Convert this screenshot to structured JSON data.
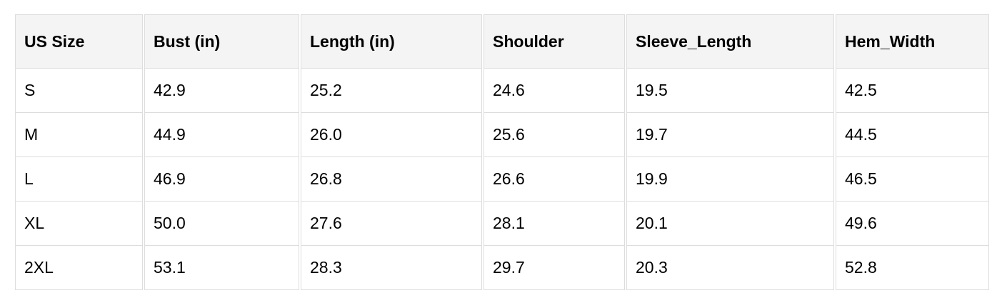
{
  "table": {
    "headers": [
      "US Size",
      "Bust (in)",
      "Length (in)",
      "Shoulder",
      "Sleeve_Length",
      "Hem_Width"
    ],
    "rows": [
      [
        "S",
        "42.9",
        "25.2",
        "24.6",
        "19.5",
        "42.5"
      ],
      [
        "M",
        "44.9",
        "26.0",
        "25.6",
        "19.7",
        "44.5"
      ],
      [
        "L",
        "46.9",
        "26.8",
        "26.6",
        "19.9",
        "46.5"
      ],
      [
        "XL",
        "50.0",
        "27.6",
        "28.1",
        "20.1",
        "49.6"
      ],
      [
        "2XL",
        "53.1",
        "28.3",
        "29.7",
        "20.3",
        "52.8"
      ]
    ]
  }
}
